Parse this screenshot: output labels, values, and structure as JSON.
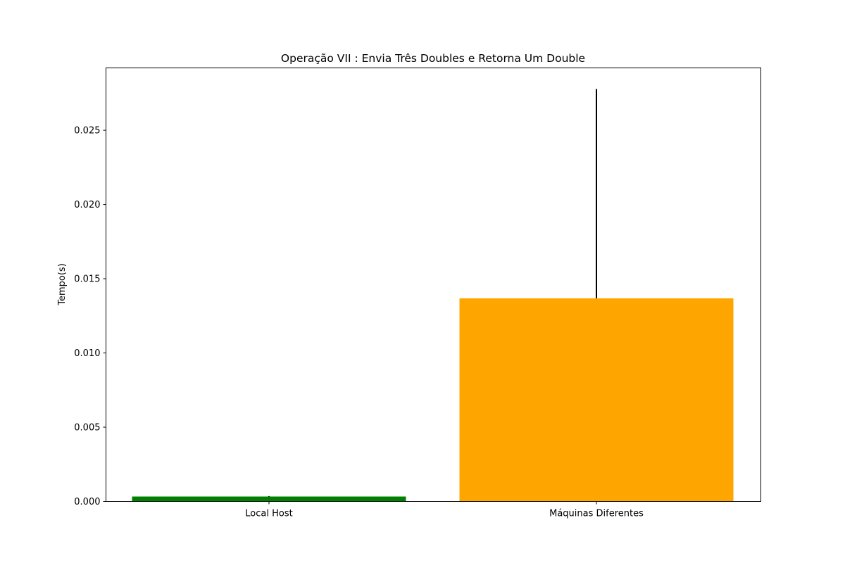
{
  "chart_data": {
    "type": "bar",
    "title": "Operação VII : Envia Três Doubles e Retorna Um Double",
    "xlabel": "",
    "ylabel": "Tempo(s)",
    "categories": [
      "Local Host",
      "Máquinas Diferentes"
    ],
    "values": [
      0.00033,
      0.01368
    ],
    "errors": [
      3e-05,
      0.0141
    ],
    "colors": [
      "#008000",
      "#ffa500"
    ],
    "ylim": [
      0.0,
      0.0292
    ],
    "yticks": [
      0.0,
      0.005,
      0.01,
      0.015,
      0.02,
      0.025
    ],
    "ytick_labels": [
      "0.000",
      "0.005",
      "0.010",
      "0.015",
      "0.020",
      "0.025"
    ],
    "grid": false,
    "legend": "none"
  }
}
